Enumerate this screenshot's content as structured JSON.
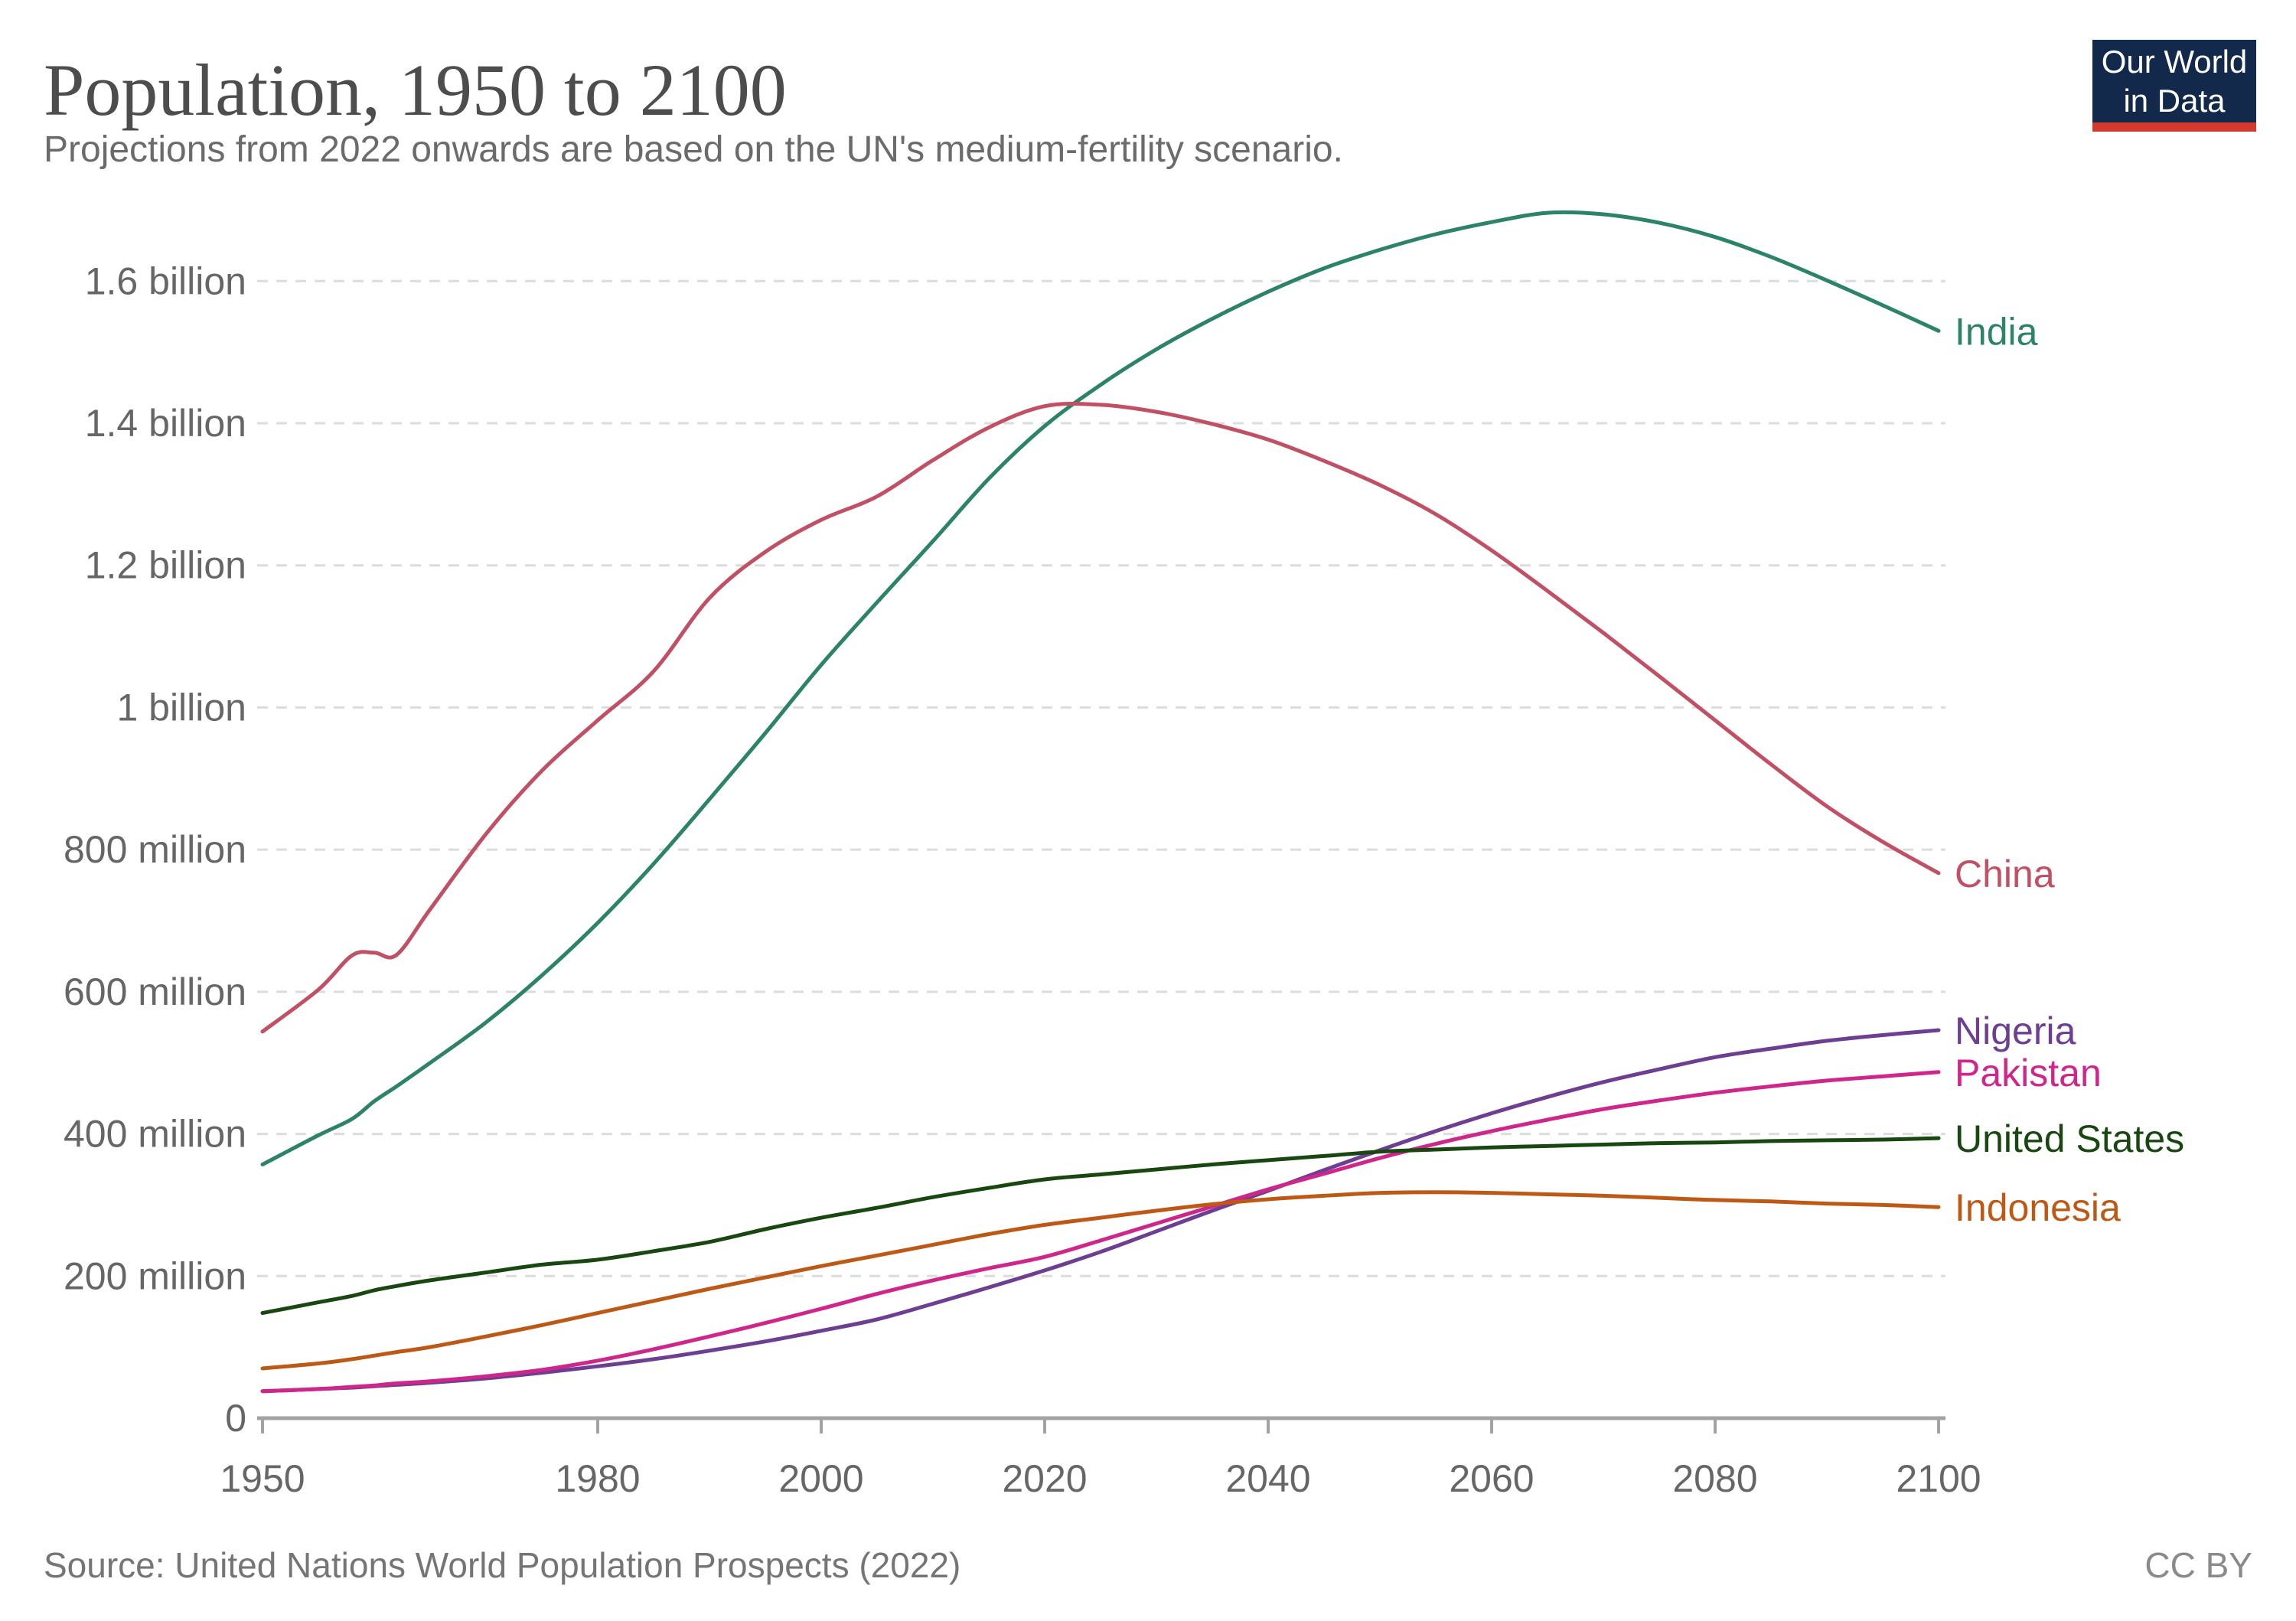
{
  "header": {
    "title": "Population, 1950 to 2100",
    "subtitle": "Projections from 2022 onwards are based on the UN's medium-fertility scenario."
  },
  "logo": {
    "line1": "Our World",
    "line2": "in Data",
    "bg_color": "#12294b",
    "accent_color": "#d23a2d"
  },
  "footer": {
    "source": "Source: United Nations World Population Prospects (2022)",
    "license": "CC BY"
  },
  "chart_data": {
    "type": "line",
    "title": "Population, 1950 to 2100",
    "subtitle": "Projections from 2022 onwards are based on the UN's medium-fertility scenario.",
    "unit": "people (millions)",
    "x_axis_label": "",
    "y_axis_label": "",
    "x_range": [
      1950,
      2100
    ],
    "y_range": [
      0,
      1750
    ],
    "grid": true,
    "legend_position": "right-of-line-ends",
    "grid_color": "#dcdcdc",
    "axis_color": "#a3a3a3",
    "tick_label_color": "#666666",
    "x_ticks": [
      1950,
      1980,
      2000,
      2020,
      2040,
      2060,
      2080,
      2100
    ],
    "y_ticks": [
      {
        "value": 0,
        "label": "0"
      },
      {
        "value": 200,
        "label": "200 million"
      },
      {
        "value": 400,
        "label": "400 million"
      },
      {
        "value": 600,
        "label": "600 million"
      },
      {
        "value": 800,
        "label": "800 million"
      },
      {
        "value": 1000,
        "label": "1 billion"
      },
      {
        "value": 1200,
        "label": "1.2 billion"
      },
      {
        "value": 1400,
        "label": "1.4 billion"
      },
      {
        "value": 1600,
        "label": "1.6 billion"
      }
    ],
    "x": [
      1950,
      1955,
      1958,
      1960,
      1962,
      1965,
      1970,
      1975,
      1980,
      1985,
      1990,
      1995,
      2000,
      2005,
      2010,
      2015,
      2020,
      2025,
      2030,
      2035,
      2040,
      2045,
      2050,
      2055,
      2060,
      2065,
      2070,
      2075,
      2080,
      2085,
      2090,
      2095,
      2100
    ],
    "series": [
      {
        "name": "India",
        "color": "#2c8465",
        "values": [
          357,
          398,
          421,
          446,
          467,
          500,
          557,
          623,
          697,
          780,
          871,
          964,
          1060,
          1148,
          1234,
          1322,
          1396,
          1454,
          1504,
          1547,
          1585,
          1618,
          1644,
          1666,
          1683,
          1696,
          1694,
          1682,
          1662,
          1634,
          1601,
          1566,
          1530
        ]
      },
      {
        "name": "China",
        "color": "#c15065",
        "values": [
          544,
          603,
          651,
          655,
          652,
          716,
          822,
          911,
          982,
          1051,
          1154,
          1219,
          1264,
          1297,
          1348,
          1394,
          1424,
          1426,
          1416,
          1399,
          1377,
          1347,
          1313,
          1272,
          1221,
          1164,
          1105,
          1044,
          982,
          920,
          861,
          811,
          767
        ]
      },
      {
        "name": "Nigeria",
        "color": "#6d3e91",
        "values": [
          38,
          41,
          43,
          45,
          47,
          50,
          56,
          64,
          73,
          83,
          95,
          108,
          123,
          139,
          161,
          184,
          208,
          234,
          263,
          292,
          320,
          349,
          377,
          404,
          429,
          452,
          473,
          491,
          508,
          520,
          531,
          539,
          546
        ]
      },
      {
        "name": "Pakistan",
        "color": "#cf268c",
        "values": [
          38,
          41,
          44,
          46,
          49,
          52,
          59,
          68,
          81,
          97,
          115,
          134,
          154,
          175,
          194,
          211,
          227,
          250,
          274,
          298,
          322,
          344,
          366,
          386,
          404,
          420,
          435,
          447,
          458,
          467,
          475,
          481,
          487
        ]
      },
      {
        "name": "United States",
        "color": "#18470f",
        "values": [
          148,
          163,
          172,
          180,
          186,
          194,
          205,
          216,
          223,
          235,
          248,
          266,
          282,
          296,
          311,
          324,
          336,
          343,
          350,
          357,
          363,
          369,
          375,
          378,
          381,
          383,
          385,
          387,
          388,
          390,
          391,
          392,
          394
        ]
      },
      {
        "name": "Indonesia",
        "color": "#be5915",
        "values": [
          70,
          77,
          83,
          88,
          93,
          100,
          115,
          131,
          148,
          165,
          182,
          198,
          214,
          229,
          244,
          259,
          272,
          282,
          292,
          301,
          308,
          313,
          317,
          318,
          317,
          315,
          313,
          310,
          307,
          305,
          302,
          300,
          297
        ]
      }
    ]
  }
}
